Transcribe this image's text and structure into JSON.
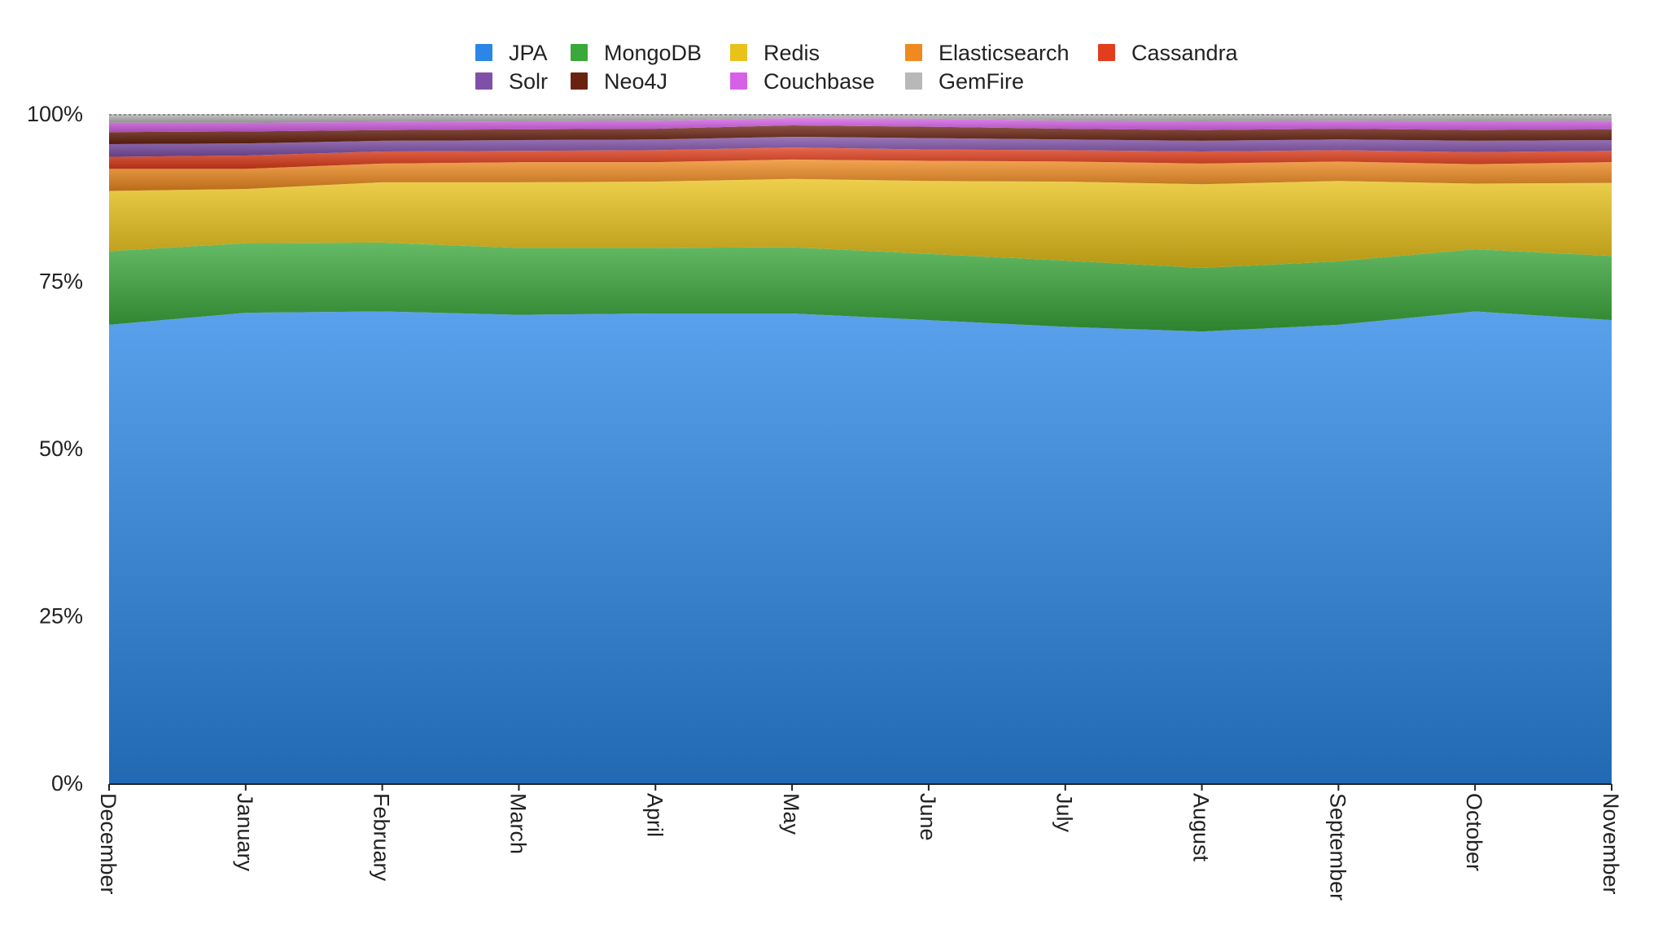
{
  "chart_data": {
    "type": "area",
    "stacked": true,
    "percent": true,
    "title": "",
    "xlabel": "",
    "ylabel": "",
    "ylim": [
      0,
      100
    ],
    "yticks": [
      "0%",
      "25%",
      "50%",
      "75%",
      "100%"
    ],
    "grid": false,
    "legend_position": "top-center",
    "categories": [
      "December",
      "January",
      "February",
      "March",
      "April",
      "May",
      "June",
      "July",
      "August",
      "September",
      "October",
      "November"
    ],
    "series": [
      {
        "name": "JPA",
        "color": "#2b86e6",
        "values": [
          68.5,
          70.3,
          70.5,
          70.0,
          70.2,
          70.2,
          69.2,
          68.2,
          67.5,
          68.5,
          70.5,
          69.2
        ]
      },
      {
        "name": "MongoDB",
        "color": "#3aa83a",
        "values": [
          11.0,
          10.4,
          10.3,
          10.0,
          9.8,
          9.9,
          9.9,
          9.9,
          9.5,
          9.5,
          9.3,
          9.6
        ]
      },
      {
        "name": "Redis",
        "color": "#e8c21a",
        "values": [
          9.0,
          8.1,
          9.0,
          9.8,
          9.9,
          10.2,
          10.9,
          11.8,
          12.5,
          12.0,
          9.8,
          10.9
        ]
      },
      {
        "name": "Elasticsearch",
        "color": "#ee8a1f",
        "values": [
          3.3,
          3.0,
          2.8,
          3.0,
          2.9,
          2.9,
          3.0,
          3.0,
          3.1,
          2.9,
          2.9,
          3.1
        ]
      },
      {
        "name": "Cassandra",
        "color": "#e23d1c",
        "values": [
          1.8,
          2.0,
          1.8,
          1.7,
          1.8,
          1.8,
          1.7,
          1.7,
          1.8,
          1.7,
          1.8,
          1.7
        ]
      },
      {
        "name": "Solr",
        "color": "#8050a8",
        "values": [
          1.9,
          1.8,
          1.6,
          1.6,
          1.6,
          1.6,
          1.7,
          1.6,
          1.6,
          1.6,
          1.7,
          1.6
        ]
      },
      {
        "name": "Neo4J",
        "color": "#6a2210",
        "values": [
          1.8,
          1.8,
          1.6,
          1.6,
          1.6,
          1.7,
          1.7,
          1.6,
          1.6,
          1.6,
          1.6,
          1.6
        ]
      },
      {
        "name": "Couchbase",
        "color": "#d661e6",
        "values": [
          1.4,
          1.3,
          1.2,
          1.2,
          1.2,
          1.1,
          1.2,
          1.2,
          1.3,
          1.2,
          1.3,
          1.3
        ]
      },
      {
        "name": "GemFire",
        "color": "#b8b8b8",
        "values": [
          1.3,
          1.3,
          1.2,
          1.1,
          1.0,
          0.6,
          0.7,
          1.0,
          1.1,
          1.0,
          1.1,
          1.0
        ]
      }
    ],
    "legend_rows": [
      [
        "JPA",
        "MongoDB",
        "Redis",
        "Elasticsearch",
        "Cassandra"
      ],
      [
        "Solr",
        "Neo4J",
        "Couchbase",
        "GemFire"
      ]
    ]
  }
}
